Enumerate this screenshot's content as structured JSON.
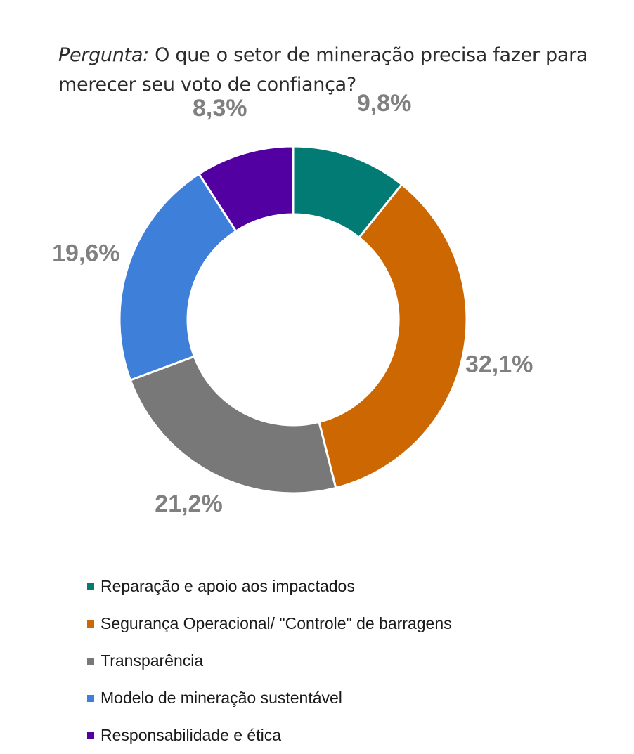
{
  "title": {
    "lead": "Pergunta:",
    "text": " O que o setor de mineração precisa fazer para merecer seu voto de confiança?"
  },
  "chart_data": {
    "type": "pie",
    "variant": "donut",
    "title": "Pergunta: O que o setor de mineração precisa fazer para merecer seu voto de confiança?",
    "categories": [
      "Reparação e apoio aos impactados",
      "Segurança Operacional/ \"Controle\" de barragens",
      "Transparência",
      "Modelo de mineração sustentável",
      "Responsabilidade e ética"
    ],
    "values": [
      9.8,
      32.1,
      21.2,
      19.6,
      8.3
    ],
    "data_labels": [
      "9,8%",
      "32,1%",
      "21,2%",
      "19,6%",
      "8,3%"
    ],
    "colors": [
      "#017b74",
      "#cd6701",
      "#787878",
      "#3d7fd9",
      "#5300a3"
    ],
    "start_angle": "12 o'clock",
    "direction": "clockwise",
    "legend_position": "bottom"
  }
}
